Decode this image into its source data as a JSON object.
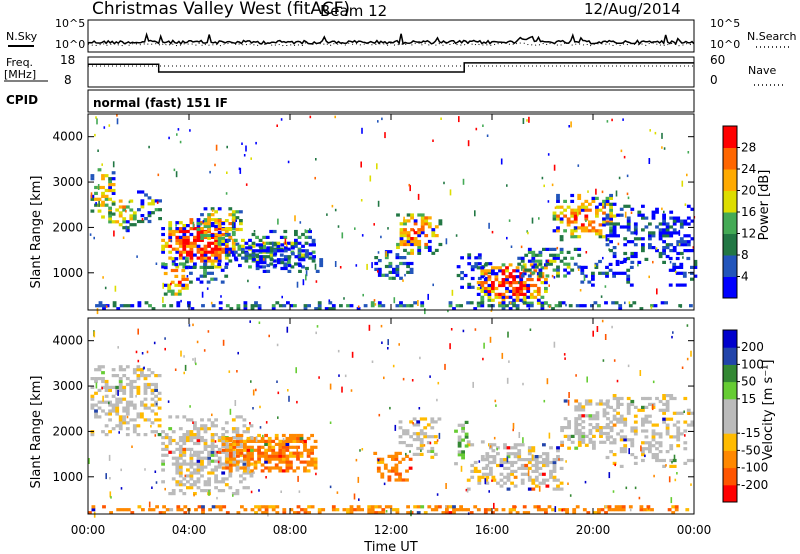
{
  "header": {
    "title": "Christmas Valley West (fitACF)",
    "beam": "Beam 12",
    "date": "12/Aug/2014"
  },
  "noise_panel": {
    "left_label": "N.Sky",
    "right_label": "N.Search",
    "left_ticks": [
      "10^5",
      "10^0"
    ],
    "right_ticks": [
      "10^5",
      "10^0"
    ]
  },
  "freq_panel": {
    "left_label": "Freq.",
    "left_unit": "[MHz]",
    "left_ticks": [
      "18",
      "8"
    ],
    "right_label": "Nave",
    "right_ticks": [
      "60",
      "0"
    ]
  },
  "cpid": {
    "label": "CPID",
    "value": "normal (fast) 151 IF"
  },
  "colors": {
    "power_scale": [
      "#0000ff",
      "#2255bb",
      "#227744",
      "#44aa55",
      "#dddd00",
      "#ffaa00",
      "#ff6600",
      "#ff0000"
    ],
    "velocity_scale": [
      "#ff0000",
      "#ff5500",
      "#ff8800",
      "#ffbb00",
      "#bbbbbb",
      "#bbbbbb",
      "#66cc33",
      "#338833",
      "#2244aa",
      "#0000cc"
    ]
  },
  "chart_data": [
    {
      "type": "heatmap",
      "title": "",
      "xlabel": "",
      "ylabel": "Slant Range [km]",
      "colorbar_label": "Power [dB]",
      "colorbar_ticks": [
        "28",
        "24",
        "20",
        "16",
        "12",
        "8",
        "4"
      ],
      "yticks": [
        "4000",
        "3000",
        "2000",
        "1000"
      ],
      "ylim": [
        180,
        4500
      ],
      "xlim": [
        "00:00",
        "24:00"
      ]
    },
    {
      "type": "heatmap",
      "title": "",
      "xlabel": "Time UT",
      "ylabel": "Slant Range [km]",
      "colorbar_label": "Velocity [m s⁻¹]",
      "colorbar_ticks": [
        "200",
        "100",
        "50",
        "15",
        "-15",
        "-50",
        "-100",
        "-200"
      ],
      "yticks": [
        "4000",
        "3000",
        "2000",
        "1000"
      ],
      "xticks": [
        "00:00",
        "04:00",
        "08:00",
        "12:00",
        "16:00",
        "20:00",
        "00:00"
      ],
      "ylim": [
        180,
        4500
      ],
      "xlim": [
        "00:00",
        "24:00"
      ]
    }
  ]
}
